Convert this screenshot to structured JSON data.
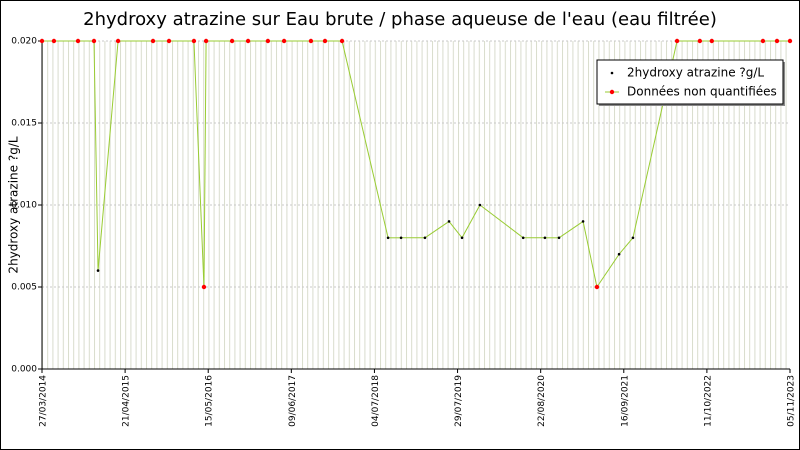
{
  "chart_data": {
    "type": "line",
    "title": "2hydroxy atrazine sur Eau brute / phase aqueuse de l'eau (eau filtrée)",
    "y_label": "2hydroxy atrazine ?g/L",
    "x": [
      "2014-03-27",
      "2014-05-22",
      "2014-09-12",
      "2014-11-26",
      "2014-12-15",
      "2015-03-19",
      "2015-08-30",
      "2015-11-13",
      "2016-03-09",
      "2016-04-25",
      "2016-05-05",
      "2016-09-04",
      "2016-11-18",
      "2017-02-19",
      "2017-05-06",
      "2017-09-09",
      "2017-11-14",
      "2018-02-02",
      "2018-09-06",
      "2018-11-06",
      "2019-02-26",
      "2019-06-19",
      "2019-08-19",
      "2019-11-11",
      "2020-06-01",
      "2020-09-11",
      "2020-11-16",
      "2021-03-09",
      "2021-05-13",
      "2021-08-25",
      "2021-10-29",
      "2022-05-24",
      "2022-09-08",
      "2022-11-03",
      "2023-07-01",
      "2023-09-05",
      "2023-11-05"
    ],
    "series": [
      {
        "name": "2hydroxy atrazine ?g/L",
        "color": "#000000",
        "values": [
          null,
          null,
          null,
          null,
          0.006,
          null,
          null,
          null,
          null,
          null,
          null,
          null,
          null,
          null,
          null,
          null,
          null,
          null,
          0.008,
          0.008,
          0.008,
          0.009,
          0.008,
          0.01,
          0.008,
          0.008,
          0.008,
          0.009,
          null,
          0.007,
          0.008,
          null,
          null,
          null,
          null,
          null,
          null
        ]
      },
      {
        "name": "Données non quantifiées",
        "color": "#ff0000",
        "values": [
          0.02,
          0.02,
          0.02,
          0.02,
          null,
          0.02,
          0.02,
          0.02,
          0.02,
          0.005,
          0.02,
          0.02,
          0.02,
          0.02,
          0.02,
          0.02,
          0.02,
          0.02,
          null,
          null,
          null,
          null,
          null,
          null,
          null,
          null,
          null,
          null,
          0.005,
          null,
          null,
          0.02,
          0.02,
          0.02,
          0.02,
          0.02,
          0.02
        ]
      }
    ],
    "line_color": "#99cc33",
    "xlim": [
      "2014-03-27",
      "2023-11-05"
    ],
    "xticks": [
      {
        "value": "2014-03-27",
        "label": "27/03/2014"
      },
      {
        "value": "2015-04-21",
        "label": "21/04/2015"
      },
      {
        "value": "2016-05-15",
        "label": "15/05/2016"
      },
      {
        "value": "2017-06-09",
        "label": "09/06/2017"
      },
      {
        "value": "2018-07-04",
        "label": "04/07/2018"
      },
      {
        "value": "2019-07-29",
        "label": "29/07/2019"
      },
      {
        "value": "2020-08-22",
        "label": "22/08/2020"
      },
      {
        "value": "2021-09-16",
        "label": "16/09/2021"
      },
      {
        "value": "2022-10-11",
        "label": "11/10/2022"
      },
      {
        "value": "2023-11-05",
        "label": "05/11/2023"
      }
    ],
    "ylim": [
      0,
      0.02
    ],
    "yticks": [
      {
        "value": 0,
        "label": "0.000"
      },
      {
        "value": 0.005,
        "label": "0.005"
      },
      {
        "value": 0.01,
        "label": "0.010"
      },
      {
        "value": 0.015,
        "label": "0.015"
      },
      {
        "value": 0.02,
        "label": "0.020"
      }
    ],
    "grid": true,
    "legend": "top-right"
  }
}
